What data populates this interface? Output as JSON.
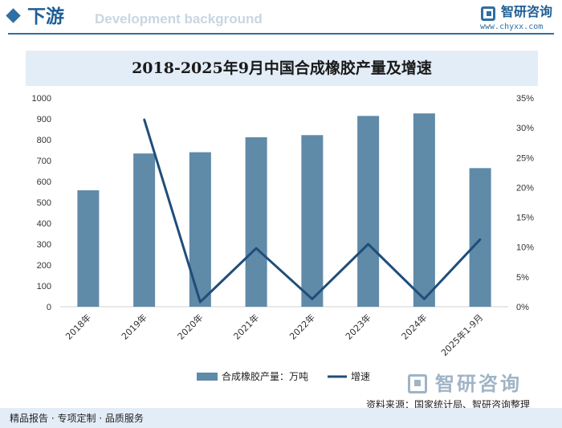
{
  "header": {
    "section_title": "下游",
    "section_subtitle": "Development background",
    "brand_name": "智研咨询",
    "brand_url": "www.chyxx.com"
  },
  "chart_data": {
    "type": "bar",
    "title": "2018-2025年9月中国合成橡胶产量及增速",
    "categories": [
      "2018年",
      "2019年",
      "2020年",
      "2021年",
      "2022年",
      "2023年",
      "2024年",
      "2025年1-9月"
    ],
    "series": [
      {
        "name": "合成橡胶产量：万吨",
        "type": "bar",
        "axis": "left",
        "color": "#5f8aa8",
        "values": [
          558,
          734,
          740,
          812,
          822,
          914,
          926,
          664
        ]
      },
      {
        "name": "增速",
        "type": "line",
        "axis": "right",
        "color": "#1f4e79",
        "values": [
          null,
          31.4,
          0.8,
          9.8,
          1.3,
          10.5,
          1.3,
          11.3
        ]
      }
    ],
    "left_axis": {
      "ylim": [
        0,
        1000
      ],
      "ticks": [
        "0",
        "100",
        "200",
        "300",
        "400",
        "500",
        "600",
        "700",
        "800",
        "900",
        "1000"
      ]
    },
    "right_axis": {
      "ylim": [
        0,
        35
      ],
      "ticks": [
        "0%",
        "5%",
        "10%",
        "15%",
        "20%",
        "25%",
        "30%",
        "35%"
      ]
    },
    "legend_position": "bottom",
    "grid": false
  },
  "source_text": "资料来源：国家统计局、智研咨询整理",
  "footer_text": "精品报告 · 专项定制 · 品质服务",
  "watermark_text": "智研咨询",
  "colors": {
    "accent": "#2f6fa3",
    "bar": "#5f8aa8",
    "line": "#1f4e79",
    "band": "#e3edf7"
  }
}
